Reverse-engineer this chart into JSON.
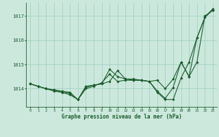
{
  "title": "Graphe pression niveau de la mer (hPa)",
  "bg_color": "#cce8dd",
  "grid_color": "#99ccbb",
  "line_color": "#1a5c2a",
  "marker_color": "#1a5c2a",
  "xlim": [
    -0.5,
    23.5
  ],
  "ylim": [
    1013.25,
    1017.55
  ],
  "yticks": [
    1014,
    1015,
    1016,
    1017
  ],
  "xticks": [
    0,
    1,
    2,
    3,
    4,
    5,
    6,
    7,
    8,
    9,
    10,
    11,
    12,
    13,
    14,
    15,
    16,
    17,
    18,
    19,
    20,
    21,
    22,
    23
  ],
  "series": [
    [
      1014.2,
      1014.1,
      1014.0,
      1013.9,
      1013.85,
      1013.75,
      1013.55,
      1014.1,
      1014.15,
      1014.2,
      1014.3,
      1014.75,
      1014.4,
      1014.35,
      1014.35,
      1014.3,
      1013.9,
      1013.6,
      1014.05,
      1015.1,
      1014.5,
      1015.1,
      1017.0,
      1017.25
    ],
    [
      1014.2,
      1014.1,
      1014.0,
      1013.95,
      1013.9,
      1013.85,
      1013.55,
      1014.05,
      1014.15,
      1014.2,
      1014.8,
      1014.5,
      1014.4,
      1014.4,
      1014.35,
      1014.3,
      1013.85,
      1013.55,
      1013.55,
      1014.45,
      1015.1,
      1016.1,
      1016.95,
      1017.3
    ],
    [
      1014.2,
      1014.1,
      1014.0,
      1013.95,
      1013.85,
      1013.82,
      1013.55,
      1014.0,
      1014.1,
      1014.25,
      1014.6,
      1014.3,
      1014.35,
      1014.35,
      1014.35,
      1014.3,
      1014.35,
      1014.0,
      1014.4,
      1015.1,
      1014.5,
      1016.1,
      1016.95,
      1017.25
    ]
  ]
}
